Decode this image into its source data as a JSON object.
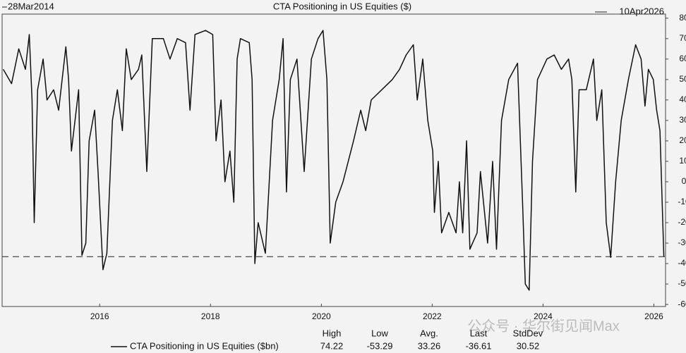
{
  "chart_data": {
    "type": "line",
    "title": "CTA Positioning in US Equities ($)",
    "start_label": "28Mar2014",
    "end_label": "10Apr2026",
    "xlim": [
      2014.24,
      2026.21
    ],
    "xticks": [
      2016,
      2018,
      2020,
      2022,
      2024,
      2026
    ],
    "ylim": [
      -61,
      82
    ],
    "yticks": [
      80,
      70,
      60,
      50,
      40,
      30,
      20,
      10,
      0,
      -10,
      -20,
      -30,
      -40,
      -50,
      -60
    ],
    "grid": false,
    "series": [
      {
        "name": "CTA Positioning in US Equities ($bn)",
        "color": "#111111",
        "x": [
          2014.26,
          2014.41,
          2014.54,
          2014.66,
          2014.73,
          2014.78,
          2014.82,
          2014.88,
          2014.98,
          2015.05,
          2015.17,
          2015.26,
          2015.39,
          2015.44,
          2015.49,
          2015.62,
          2015.68,
          2015.75,
          2015.81,
          2015.91,
          2015.97,
          2016.06,
          2016.13,
          2016.23,
          2016.32,
          2016.41,
          2016.48,
          2016.57,
          2016.7,
          2016.76,
          2016.85,
          2016.95,
          2017.15,
          2017.27,
          2017.4,
          2017.55,
          2017.63,
          2017.72,
          2017.91,
          2018.04,
          2018.1,
          2018.19,
          2018.26,
          2018.35,
          2018.42,
          2018.48,
          2018.54,
          2018.7,
          2018.75,
          2018.8,
          2018.86,
          2018.99,
          2019.12,
          2019.24,
          2019.31,
          2019.37,
          2019.44,
          2019.56,
          2019.69,
          2019.82,
          2019.94,
          2020.03,
          2020.1,
          2020.16,
          2020.26,
          2020.39,
          2020.58,
          2020.71,
          2020.8,
          2020.9,
          2021.09,
          2021.28,
          2021.41,
          2021.53,
          2021.66,
          2021.73,
          2021.83,
          2021.92,
          2022.01,
          2022.04,
          2022.11,
          2022.17,
          2022.3,
          2022.43,
          2022.49,
          2022.55,
          2022.62,
          2022.68,
          2022.81,
          2022.87,
          2023.0,
          2023.09,
          2023.16,
          2023.25,
          2023.38,
          2023.54,
          2023.63,
          2023.68,
          2023.75,
          2023.81,
          2023.9,
          2024.07,
          2024.2,
          2024.33,
          2024.46,
          2024.52,
          2024.59,
          2024.65,
          2024.78,
          2024.91,
          2024.97,
          2025.06,
          2025.14,
          2025.22,
          2025.31,
          2025.41,
          2025.54,
          2025.67,
          2025.77,
          2025.84,
          2025.9,
          2025.99,
          2026.05,
          2026.11,
          2026.18
        ],
        "values": [
          55,
          48,
          65,
          55,
          72,
          40,
          -20,
          45,
          60,
          40,
          45,
          35,
          66,
          50,
          15,
          45,
          -36,
          -30,
          20,
          35,
          5,
          -43,
          -35,
          30,
          45,
          25,
          65,
          50,
          55,
          62,
          5,
          70,
          70,
          60,
          70,
          68,
          35,
          72,
          74,
          72,
          20,
          40,
          0,
          15,
          -10,
          60,
          70,
          68,
          50,
          -40,
          -20,
          -35,
          30,
          50,
          70,
          -5,
          50,
          60,
          5,
          60,
          70,
          74,
          50,
          -30,
          -10,
          0,
          20,
          35,
          25,
          40,
          45,
          50,
          55,
          62,
          67,
          40,
          60,
          30,
          15,
          -15,
          10,
          -25,
          -15,
          -25,
          0,
          -25,
          20,
          -33,
          -25,
          5,
          -30,
          10,
          -33,
          30,
          50,
          58,
          -10,
          -50,
          -53,
          10,
          50,
          60,
          62,
          55,
          60,
          50,
          -5,
          45,
          45,
          60,
          30,
          45,
          -20,
          -37,
          0,
          30,
          50,
          67,
          60,
          37,
          55,
          50,
          35,
          25,
          -36.61
        ]
      }
    ],
    "stats": {
      "headers": [
        "High",
        "Low",
        "Avg.",
        "Last",
        "StdDev"
      ],
      "values": [
        74.22,
        -53.29,
        33.26,
        -36.61,
        30.52
      ]
    },
    "watermark": "公众号 · 华尔街见闻Max"
  }
}
